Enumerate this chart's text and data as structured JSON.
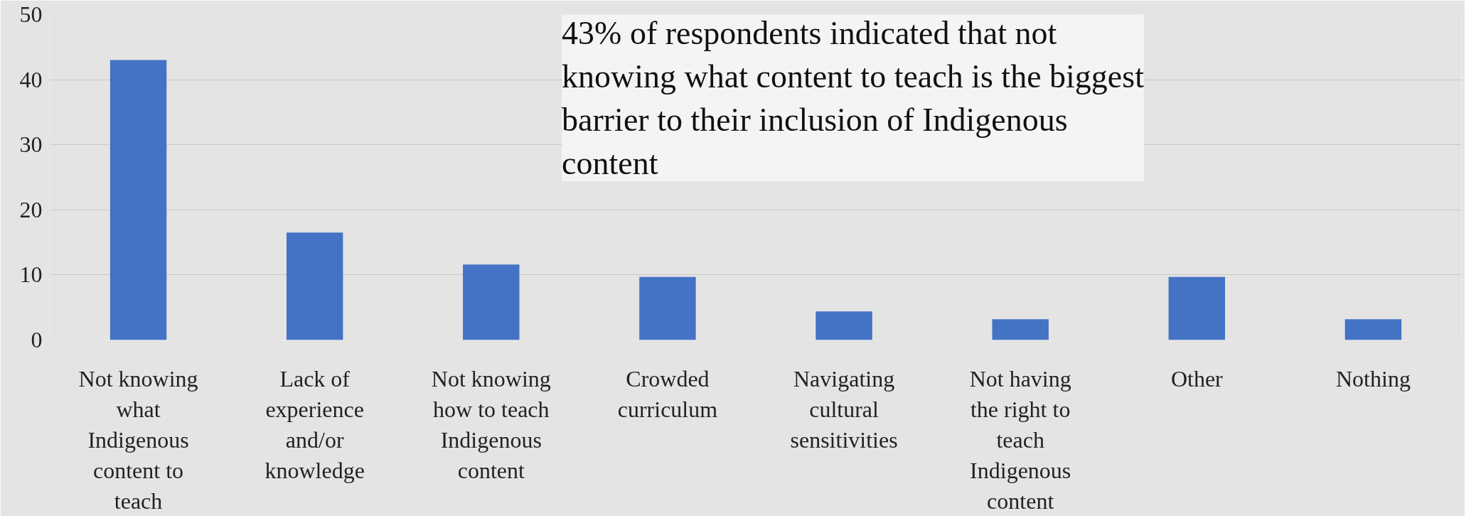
{
  "chart_data": {
    "type": "bar",
    "categories": [
      "Not knowing what Indigenous content to teach",
      "Lack of experience and/or knowledge",
      "Not knowing how to teach Indigenous content",
      "Crowded curriculum",
      "Navigating cultural sensitivities",
      "Not having the right to teach Indigenous content",
      "Other",
      "Nothing"
    ],
    "values": [
      43,
      16.5,
      11.6,
      9.7,
      4.4,
      3.2,
      9.7,
      3.2
    ],
    "color": "#4472c4",
    "ylim": [
      0,
      50
    ],
    "yticks": [
      0,
      10,
      20,
      30,
      40,
      50
    ],
    "grid": "y",
    "annotations": [
      "43% of respondents indicated that not knowing what content to teach is the biggest barrier to their inclusion of Indigenous content"
    ]
  }
}
